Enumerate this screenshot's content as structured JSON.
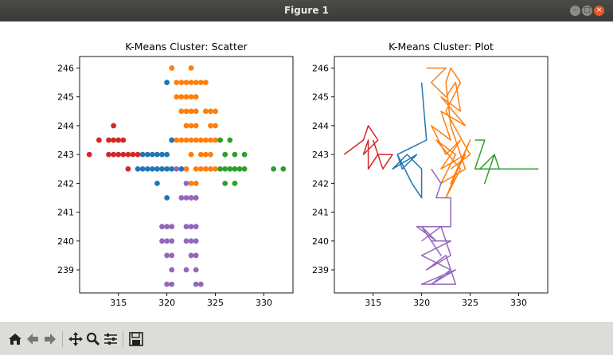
{
  "window": {
    "title": "Figure 1"
  },
  "toolbar": {
    "buttons": [
      "home-icon",
      "back-icon",
      "forward-icon",
      "pan-icon",
      "zoom-icon",
      "configure-icon",
      "save-icon"
    ]
  },
  "colors": {
    "blue": "#1f77b4",
    "orange": "#ff7f0e",
    "green": "#2ca02c",
    "red": "#d62728",
    "purple": "#9467bd"
  },
  "chart_data": [
    {
      "type": "scatter",
      "title": "K-Means Cluster: Scatter",
      "xlabel": "",
      "ylabel": "",
      "xlim": [
        311,
        333
      ],
      "ylim": [
        238.2,
        246.4
      ],
      "xticks": [
        "315",
        "320",
        "325",
        "330"
      ],
      "yticks": [
        "239",
        "240",
        "241",
        "242",
        "243",
        "244",
        "245",
        "246"
      ],
      "grid": false,
      "series": [
        {
          "color": "orange",
          "points": [
            [
              320.5,
              246
            ],
            [
              322.5,
              246
            ],
            [
              321,
              245.5
            ],
            [
              321.5,
              245.5
            ],
            [
              322,
              245.5
            ],
            [
              322.5,
              245.5
            ],
            [
              323,
              245.5
            ],
            [
              323.5,
              245.5
            ],
            [
              324,
              245.5
            ],
            [
              321,
              245
            ],
            [
              321.5,
              245
            ],
            [
              322,
              245
            ],
            [
              322.5,
              245
            ],
            [
              323,
              245
            ],
            [
              321.5,
              244.5
            ],
            [
              322,
              244.5
            ],
            [
              322.5,
              244.5
            ],
            [
              323,
              244.5
            ],
            [
              324,
              244.5
            ],
            [
              324.5,
              244.5
            ],
            [
              325,
              244.5
            ],
            [
              322,
              244
            ],
            [
              322.5,
              244
            ],
            [
              323,
              244
            ],
            [
              324.5,
              244
            ],
            [
              325,
              244
            ],
            [
              322,
              243.5
            ],
            [
              322.5,
              243.5
            ],
            [
              323,
              243.5
            ],
            [
              324,
              243.5
            ],
            [
              320.5,
              243.5
            ],
            [
              321,
              243.5
            ],
            [
              321.5,
              243.5
            ],
            [
              323.5,
              243.5
            ],
            [
              324.5,
              243.5
            ],
            [
              325,
              243.5
            ],
            [
              322.5,
              243
            ],
            [
              323.5,
              243
            ],
            [
              324,
              243
            ],
            [
              324.5,
              243
            ],
            [
              322,
              242.5
            ],
            [
              323,
              242.5
            ],
            [
              323.5,
              242.5
            ],
            [
              324,
              242.5
            ],
            [
              324.5,
              242.5
            ],
            [
              325,
              242.5
            ],
            [
              322.5,
              242
            ],
            [
              323,
              242
            ],
            [
              322.5,
              241.5
            ],
            [
              323,
              241.5
            ]
          ]
        },
        {
          "color": "blue",
          "points": [
            [
              320,
              245.5
            ],
            [
              320.5,
              243.5
            ],
            [
              317.5,
              243
            ],
            [
              318,
              243
            ],
            [
              318.5,
              243
            ],
            [
              319,
              243
            ],
            [
              319.5,
              243
            ],
            [
              320,
              243
            ],
            [
              317,
              242.5
            ],
            [
              317.5,
              242.5
            ],
            [
              318,
              242.5
            ],
            [
              318.5,
              242.5
            ],
            [
              319,
              242.5
            ],
            [
              319.5,
              242.5
            ],
            [
              320,
              242.5
            ],
            [
              320.5,
              242.5
            ],
            [
              321.5,
              242.5
            ],
            [
              319,
              242
            ],
            [
              320,
              241.5
            ]
          ]
        },
        {
          "color": "green",
          "points": [
            [
              325.5,
              243.5
            ],
            [
              326.5,
              243.5
            ],
            [
              326,
              243
            ],
            [
              327,
              243
            ],
            [
              328,
              243
            ],
            [
              325.5,
              242.5
            ],
            [
              326,
              242.5
            ],
            [
              326.5,
              242.5
            ],
            [
              327,
              242.5
            ],
            [
              327.5,
              242.5
            ],
            [
              328,
              242.5
            ],
            [
              331,
              242.5
            ],
            [
              332,
              242.5
            ],
            [
              326,
              242
            ],
            [
              327,
              242
            ]
          ]
        },
        {
          "color": "red",
          "points": [
            [
              314.5,
              244
            ],
            [
              313,
              243.5
            ],
            [
              314,
              243.5
            ],
            [
              314.5,
              243.5
            ],
            [
              315,
              243.5
            ],
            [
              315.5,
              243.5
            ],
            [
              312,
              243
            ],
            [
              314,
              243
            ],
            [
              314.5,
              243
            ],
            [
              315,
              243
            ],
            [
              315.5,
              243
            ],
            [
              316,
              243
            ],
            [
              316.5,
              243
            ],
            [
              317,
              243
            ],
            [
              316,
              242.5
            ]
          ]
        },
        {
          "color": "purple",
          "points": [
            [
              321,
              242.5
            ],
            [
              322,
              242
            ],
            [
              321.5,
              241.5
            ],
            [
              322,
              241.5
            ],
            [
              322.5,
              241.5
            ],
            [
              323,
              241.5
            ],
            [
              319.5,
              240.5
            ],
            [
              320,
              240.5
            ],
            [
              320.5,
              240.5
            ],
            [
              322,
              240.5
            ],
            [
              322.5,
              240.5
            ],
            [
              323,
              240.5
            ],
            [
              319.5,
              240
            ],
            [
              320,
              240
            ],
            [
              320.5,
              240
            ],
            [
              322,
              240
            ],
            [
              322.5,
              240
            ],
            [
              323,
              240
            ],
            [
              320,
              239.5
            ],
            [
              320.5,
              239.5
            ],
            [
              322.5,
              239.5
            ],
            [
              323,
              239.5
            ],
            [
              320.5,
              239
            ],
            [
              322,
              239
            ],
            [
              323,
              239
            ],
            [
              320,
              238.5
            ],
            [
              320.5,
              238.5
            ],
            [
              323,
              238.5
            ],
            [
              323.5,
              238.5
            ]
          ]
        }
      ]
    },
    {
      "type": "line",
      "title": "K-Means Cluster: Plot",
      "xlabel": "",
      "ylabel": "",
      "xlim": [
        311,
        333
      ],
      "ylim": [
        238.2,
        246.4
      ],
      "xticks": [
        "315",
        "320",
        "325",
        "330"
      ],
      "yticks": [
        "239",
        "240",
        "241",
        "242",
        "243",
        "244",
        "245",
        "246"
      ],
      "grid": false,
      "series": [
        {
          "color": "orange",
          "points": [
            [
              320.5,
              246
            ],
            [
              322.5,
              246
            ],
            [
              321,
              245.5
            ],
            [
              322.5,
              245
            ],
            [
              323.5,
              245.5
            ],
            [
              324,
              244.5
            ],
            [
              322,
              245
            ],
            [
              324.5,
              244
            ],
            [
              322,
              244.5
            ],
            [
              323,
              243.5
            ],
            [
              321,
              244
            ],
            [
              322.5,
              243
            ],
            [
              324,
              243.5
            ],
            [
              322,
              242.5
            ],
            [
              324.5,
              243
            ],
            [
              323,
              242
            ],
            [
              325,
              243.5
            ],
            [
              322.5,
              241.5
            ],
            [
              324,
              242.5
            ],
            [
              321.5,
              243.5
            ],
            [
              323.5,
              243
            ],
            [
              322,
              242
            ],
            [
              324.5,
              242.5
            ],
            [
              323,
              244
            ],
            [
              322.5,
              245.5
            ],
            [
              323,
              246
            ],
            [
              324,
              245.5
            ],
            [
              322.5,
              244.5
            ],
            [
              325,
              243
            ],
            [
              323,
              242.5
            ]
          ]
        },
        {
          "color": "blue",
          "points": [
            [
              320,
              245.5
            ],
            [
              320.5,
              243.5
            ],
            [
              317.5,
              243
            ],
            [
              319,
              242
            ],
            [
              320,
              241.5
            ],
            [
              320,
              242.5
            ],
            [
              318.5,
              243
            ],
            [
              317,
              242.5
            ],
            [
              319.5,
              243
            ],
            [
              318,
              242.5
            ],
            [
              317.5,
              243
            ]
          ]
        },
        {
          "color": "green",
          "points": [
            [
              325.5,
              243.5
            ],
            [
              326.5,
              243.5
            ],
            [
              326,
              243
            ],
            [
              325.5,
              242.5
            ],
            [
              332,
              242.5
            ],
            [
              326,
              242.5
            ],
            [
              327.5,
              243
            ],
            [
              326.5,
              242
            ],
            [
              327,
              242.5
            ],
            [
              327.5,
              243
            ],
            [
              328,
              242.5
            ]
          ]
        },
        {
          "color": "red",
          "points": [
            [
              312,
              243
            ],
            [
              314,
              243.5
            ],
            [
              314.5,
              244
            ],
            [
              315.5,
              243.5
            ],
            [
              314,
              243
            ],
            [
              314.5,
              243.5
            ],
            [
              314.5,
              242.5
            ],
            [
              315.5,
              243
            ],
            [
              316,
              243
            ],
            [
              317,
              243
            ],
            [
              316,
              242.5
            ],
            [
              315,
              243.5
            ]
          ]
        },
        {
          "color": "purple",
          "points": [
            [
              321,
              242.5
            ],
            [
              322,
              242
            ],
            [
              321.5,
              241.5
            ],
            [
              323,
              241.5
            ],
            [
              323,
              240.5
            ],
            [
              319.5,
              240.5
            ],
            [
              321.5,
              240
            ],
            [
              320,
              240.5
            ],
            [
              322,
              239.5
            ],
            [
              321,
              240
            ],
            [
              323,
              240
            ],
            [
              320,
              239.5
            ],
            [
              323,
              239
            ],
            [
              321,
              238.5
            ],
            [
              323.5,
              239
            ],
            [
              320,
              238.5
            ],
            [
              323.5,
              238.5
            ],
            [
              322.5,
              239.5
            ],
            [
              320.5,
              239
            ],
            [
              323,
              239.5
            ],
            [
              322,
              240.5
            ],
            [
              320,
              240
            ]
          ]
        }
      ]
    }
  ]
}
